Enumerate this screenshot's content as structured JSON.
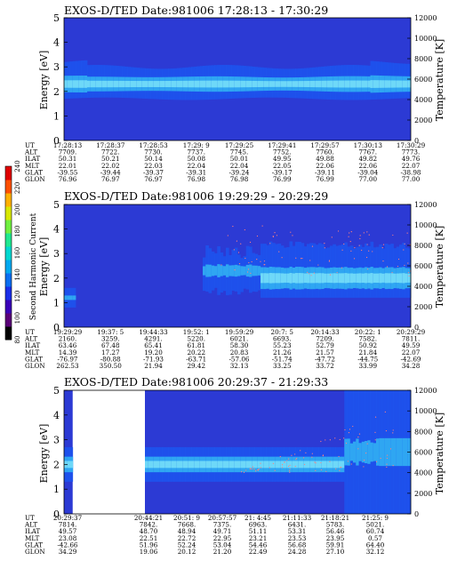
{
  "colorbar": {
    "label": "Second Harmonic Current",
    "ticks": [
      "80",
      "100",
      "120",
      "140",
      "160",
      "180",
      "200",
      "220",
      "240"
    ],
    "colors": [
      "#000000",
      "#5a0078",
      "#3a00b8",
      "#1a2ee8",
      "#0a6ef0",
      "#00a8f0",
      "#00d8d0",
      "#20e890",
      "#70f040",
      "#d8e800",
      "#ffb000",
      "#ff5000",
      "#e00000"
    ]
  },
  "chart_data": [
    {
      "type": "heatmap",
      "title": "EXOS-D/TED   Date:981006   17:28:13 - 17:30:29",
      "ylabel": "Energy [eV]",
      "y2label": "Temperature [K]",
      "ylim": [
        0,
        5
      ],
      "y2lim": [
        0,
        12000
      ],
      "yticks": [
        "0",
        "1",
        "2",
        "3",
        "4",
        "5"
      ],
      "y2ticks": [
        "0",
        "2000",
        "4000",
        "6000",
        "8000",
        "10000",
        "12000"
      ],
      "band_energy_eV": [
        1.7,
        3.0
      ],
      "peak_energy_eV": 2.3,
      "rows": [
        {
          "label": "UT",
          "values": [
            "17:28:13",
            "17:28:37",
            "17:28:53",
            "17:29: 9",
            "17:29:25",
            "17:29:41",
            "17:29:57",
            "17:30:13",
            "17:30:29"
          ]
        },
        {
          "label": "ALT",
          "values": [
            "7709.",
            "7722.",
            "7730.",
            "7737.",
            "7745.",
            "7752.",
            "7760.",
            "7767.",
            "7773."
          ]
        },
        {
          "label": "ILAT",
          "values": [
            "50.31",
            "50.21",
            "50.14",
            "50.08",
            "50.01",
            "49.95",
            "49.88",
            "49.82",
            "49.76"
          ]
        },
        {
          "label": "MLT",
          "values": [
            "22.01",
            "22.02",
            "22.03",
            "22.04",
            "22.04",
            "22.05",
            "22.06",
            "22.06",
            "22.07"
          ]
        },
        {
          "label": "GLAT",
          "values": [
            "-39.55",
            "-39.44",
            "-39.37",
            "-39.31",
            "-39.24",
            "-39.17",
            "-39.11",
            "-39.04",
            "-38.98"
          ]
        },
        {
          "label": "GLON",
          "values": [
            "76.96",
            "76.97",
            "76.97",
            "76.98",
            "76.98",
            "76.99",
            "76.99",
            "77.00",
            "77.00"
          ]
        }
      ]
    },
    {
      "type": "heatmap",
      "title": "EXOS-D/TED   Date:981006   19:29:29 - 20:29:29",
      "ylabel": "Energy [eV]",
      "y2label": "Temperature [K]",
      "ylim": [
        0,
        5
      ],
      "y2lim": [
        0,
        12000
      ],
      "yticks": [
        "0",
        "1",
        "2",
        "3",
        "4",
        "5"
      ],
      "y2ticks": [
        "0",
        "2000",
        "4000",
        "6000",
        "8000",
        "10000",
        "12000"
      ],
      "band_energy_eV": [
        1.0,
        3.4
      ],
      "peak_energy_eV": 2.2,
      "rows": [
        {
          "label": "UT",
          "values": [
            "19:29:29",
            "19:37: 5",
            "19:44:33",
            "19:52: 1",
            "19:59:29",
            "20:7: 5",
            "20:14:33",
            "20:22: 1",
            "20:29:29"
          ]
        },
        {
          "label": "ALT",
          "values": [
            "2160.",
            "3259.",
            "4291.",
            "5220.",
            "6021.",
            "6693.",
            "7209.",
            "7582.",
            "7811."
          ]
        },
        {
          "label": "ILAT",
          "values": [
            "63.46",
            "67.48",
            "65.41",
            "61.81",
            "58.30",
            "55.23",
            "52.79",
            "50.92",
            "49.59"
          ]
        },
        {
          "label": "MLT",
          "values": [
            "14.39",
            "17.27",
            "19.20",
            "20.22",
            "20.83",
            "21.26",
            "21.57",
            "21.84",
            "22.07"
          ]
        },
        {
          "label": "GLAT",
          "values": [
            "-76.97",
            "-80.88",
            "-71.93",
            "-63.71",
            "-57.06",
            "-51.74",
            "-47.72",
            "-44.75",
            "-42.69"
          ]
        },
        {
          "label": "GLON",
          "values": [
            "262.53",
            "350.50",
            "21.94",
            "29.42",
            "32.13",
            "33.25",
            "33.72",
            "33.99",
            "34.28"
          ]
        }
      ]
    },
    {
      "type": "heatmap",
      "title": "EXOS-D/TED   Date:981006   20:29:37 - 21:29:33",
      "ylabel": "Energy [eV]",
      "y2label": "Temperature [K]",
      "ylim": [
        0,
        5
      ],
      "y2lim": [
        0,
        12000
      ],
      "yticks": [
        "0",
        "1",
        "2",
        "3",
        "4",
        "5"
      ],
      "y2ticks": [
        "0",
        "2000",
        "4000",
        "6000",
        "8000",
        "10000",
        "12000"
      ],
      "band_energy_eV": [
        1.3,
        2.7
      ],
      "peak_energy_eV": 2.0,
      "data_gap_UT": [
        "20:29:37",
        "20:44:21"
      ],
      "rows": [
        {
          "label": "UT",
          "values": [
            "20:29:37",
            "20:44:21",
            "20:51: 9",
            "20:57:57",
            "21: 4:45",
            "21:11:33",
            "21:18:21",
            "21:25: 9"
          ]
        },
        {
          "label": "ALT",
          "values": [
            "7814.",
            "7842.",
            "7668.",
            "7375.",
            "6963.",
            "6431.",
            "5783.",
            "5021."
          ]
        },
        {
          "label": "ILAT",
          "values": [
            "49.57",
            "48.70",
            "48.94",
            "49.71",
            "51.11",
            "53.31",
            "56.46",
            "60.74"
          ]
        },
        {
          "label": "MLT",
          "values": [
            "23.08",
            "22.51",
            "22.72",
            "22.95",
            "23.21",
            "23.53",
            "23.95",
            "0.57"
          ]
        },
        {
          "label": "GLAT",
          "values": [
            "-42.66",
            "51.96",
            "52.24",
            "53.04",
            "54.46",
            "56.68",
            "59.91",
            "64.40"
          ]
        },
        {
          "label": "GLON",
          "values": [
            "34.29",
            "19.06",
            "20.12",
            "21.20",
            "22.49",
            "24.28",
            "27.10",
            "32.12"
          ]
        }
      ]
    }
  ]
}
